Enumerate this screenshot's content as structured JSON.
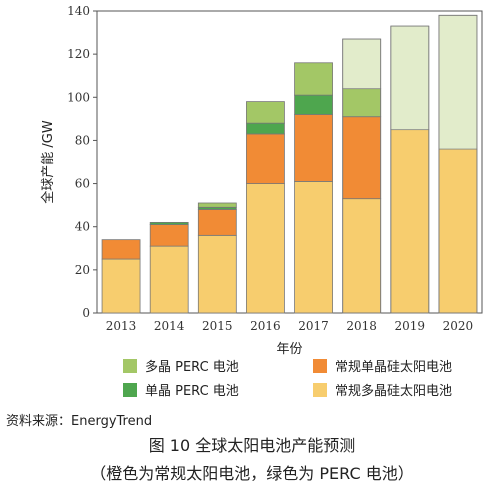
{
  "chart_data": {
    "type": "bar",
    "stacked": true,
    "categories": [
      "2013",
      "2014",
      "2015",
      "2016",
      "2017",
      "2018",
      "2019",
      "2020"
    ],
    "series": [
      {
        "name": "常规多晶硅太阳电池",
        "values": [
          25,
          31,
          36,
          60,
          61,
          53,
          85,
          76
        ],
        "color": "#f7cd6e"
      },
      {
        "name": "常规单晶硅太阳电池",
        "values": [
          9,
          10,
          12,
          23,
          31,
          38,
          0,
          0
        ],
        "color": "#f18b35"
      },
      {
        "name": "单晶 PERC 电池",
        "values": [
          0,
          1,
          1,
          5,
          9,
          0,
          0,
          0
        ],
        "color": "#4ea64e"
      },
      {
        "name": "多晶 PERC 电池",
        "values": [
          0,
          0,
          2,
          10,
          15,
          13,
          0,
          0
        ],
        "color": "#a3c766"
      }
    ],
    "projection_overlay": {
      "years": [
        "2018",
        "2019",
        "2020"
      ],
      "note_colors": {
        "orange_light": "#fde2c8",
        "green_light": "#dfeac6"
      },
      "orange_tops": [
        91,
        85,
        76
      ],
      "totals": [
        127,
        133,
        138
      ]
    },
    "ylabel": "全球产能 /GW",
    "xlabel": "年份",
    "ylim": [
      0,
      140
    ],
    "yticks": [
      0,
      20,
      40,
      60,
      80,
      100,
      120,
      140
    ],
    "legend_placement": "bottom"
  },
  "source_note": "资料来源：EnergyTrend",
  "caption_title": "图 10  全球太阳电池产能预测",
  "caption_sub": "（橙色为常规太阳电池，绿色为 PERC 电池）"
}
